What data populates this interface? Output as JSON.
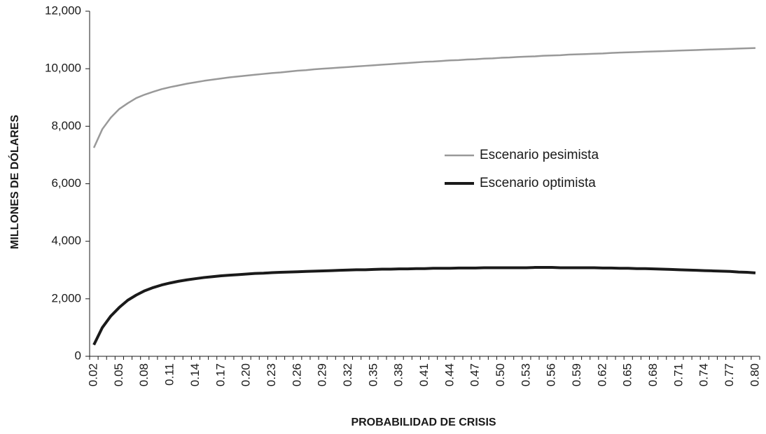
{
  "chart_data": {
    "type": "line",
    "xlabel": "PROBABILIDAD DE CRISIS",
    "ylabel": "MILLONES DE DÓLARES",
    "categories": [
      "0.02",
      null,
      null,
      "0.05",
      null,
      null,
      "0.08",
      null,
      null,
      "0.11",
      null,
      null,
      "0.14",
      null,
      null,
      "0.17",
      null,
      null,
      "0.20",
      null,
      null,
      "0.23",
      null,
      null,
      "0.26",
      null,
      null,
      "0.29",
      null,
      null,
      "0.32",
      null,
      null,
      "0.35",
      null,
      null,
      "0.38",
      null,
      null,
      "0.41",
      null,
      null,
      "0.44",
      null,
      null,
      "0.47",
      null,
      null,
      "0.50",
      null,
      null,
      "0.53",
      null,
      null,
      "0.56",
      null,
      null,
      "0.59",
      null,
      null,
      "0.62",
      null,
      null,
      "0.65",
      null,
      null,
      "0.68",
      null,
      null,
      "0.71",
      null,
      null,
      "0.74",
      null,
      null,
      "0.77",
      null,
      null,
      "0.80"
    ],
    "series": [
      {
        "name": "Escenario pesimista",
        "color": "#999999",
        "width": 2.5,
        "values": [
          7250,
          7900,
          8300,
          8600,
          8800,
          8980,
          9100,
          9200,
          9290,
          9360,
          9420,
          9480,
          9530,
          9580,
          9620,
          9660,
          9700,
          9730,
          9760,
          9790,
          9820,
          9850,
          9870,
          9900,
          9930,
          9950,
          9980,
          10000,
          10020,
          10040,
          10060,
          10080,
          10100,
          10120,
          10140,
          10160,
          10180,
          10200,
          10220,
          10240,
          10250,
          10270,
          10290,
          10300,
          10320,
          10330,
          10350,
          10360,
          10380,
          10390,
          10410,
          10420,
          10430,
          10450,
          10460,
          10470,
          10490,
          10500,
          10510,
          10520,
          10530,
          10550,
          10560,
          10570,
          10580,
          10590,
          10600,
          10610,
          10620,
          10630,
          10640,
          10650,
          10660,
          10670,
          10680,
          10690,
          10700,
          10710,
          10720
        ]
      },
      {
        "name": "Escenario optimista",
        "color": "#1a1a1a",
        "width": 4,
        "values": [
          400,
          1000,
          1400,
          1700,
          1950,
          2130,
          2280,
          2390,
          2480,
          2550,
          2610,
          2660,
          2700,
          2740,
          2770,
          2800,
          2820,
          2840,
          2860,
          2880,
          2890,
          2910,
          2920,
          2930,
          2940,
          2950,
          2960,
          2970,
          2980,
          2990,
          3000,
          3010,
          3010,
          3020,
          3030,
          3030,
          3040,
          3040,
          3050,
          3050,
          3060,
          3060,
          3060,
          3070,
          3070,
          3070,
          3080,
          3080,
          3080,
          3080,
          3080,
          3080,
          3090,
          3090,
          3090,
          3080,
          3080,
          3080,
          3080,
          3080,
          3070,
          3070,
          3060,
          3060,
          3050,
          3050,
          3040,
          3030,
          3020,
          3010,
          3000,
          2990,
          2980,
          2970,
          2960,
          2950,
          2930,
          2920,
          2900
        ]
      }
    ],
    "ylim": [
      0,
      12000
    ],
    "yticks": [
      0,
      {
        "value": 2000,
        "label": "2,000"
      },
      {
        "value": 4000,
        "label": "4,000"
      },
      {
        "value": 6000,
        "label": "6,000"
      },
      {
        "value": 8000,
        "label": "8,000"
      },
      {
        "value": 10000,
        "label": "10,000"
      },
      {
        "value": 12000,
        "label": "12,000"
      }
    ],
    "grid": false
  }
}
